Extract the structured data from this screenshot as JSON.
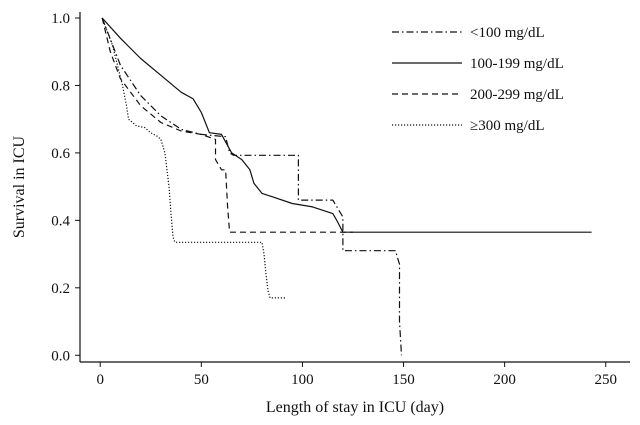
{
  "chart_data": {
    "type": "line",
    "xlabel": "Length of stay in ICU (day)",
    "ylabel": "Survival in ICU",
    "xlim": [
      -10,
      262
    ],
    "ylim": [
      -0.02,
      1.0
    ],
    "xticks": [
      0,
      50,
      100,
      150,
      200,
      250
    ],
    "yticks": [
      0.0,
      0.2,
      0.4,
      0.6,
      0.8,
      1.0
    ],
    "xtick_labels": [
      "0",
      "50",
      "100",
      "150",
      "200",
      "250"
    ],
    "ytick_labels": [
      "0.0",
      "0.2",
      "0.4",
      "0.6",
      "0.8",
      "1.0"
    ],
    "grid": false,
    "legend_position": "top-right",
    "series": [
      {
        "name": "<100 mg/dL",
        "color": "#111111",
        "dash": "dashdot",
        "points": [
          [
            1,
            1.0
          ],
          [
            10,
            0.86
          ],
          [
            20,
            0.77
          ],
          [
            30,
            0.71
          ],
          [
            40,
            0.67
          ],
          [
            50,
            0.655
          ],
          [
            62,
            0.648
          ],
          [
            64,
            0.6
          ],
          [
            66,
            0.593
          ],
          [
            98,
            0.593
          ],
          [
            98,
            0.46
          ],
          [
            115,
            0.46
          ],
          [
            120,
            0.41
          ],
          [
            120,
            0.31
          ],
          [
            146,
            0.31
          ],
          [
            148,
            0.27
          ],
          [
            148,
            0.1
          ],
          [
            149,
            0.0
          ]
        ]
      },
      {
        "name": "100-199 mg/dL",
        "color": "#111111",
        "dash": "solid",
        "points": [
          [
            1,
            1.0
          ],
          [
            10,
            0.94
          ],
          [
            20,
            0.88
          ],
          [
            30,
            0.83
          ],
          [
            40,
            0.78
          ],
          [
            46,
            0.76
          ],
          [
            50,
            0.72
          ],
          [
            54,
            0.66
          ],
          [
            60,
            0.655
          ],
          [
            65,
            0.6
          ],
          [
            70,
            0.58
          ],
          [
            74,
            0.55
          ],
          [
            76,
            0.51
          ],
          [
            80,
            0.48
          ],
          [
            85,
            0.47
          ],
          [
            95,
            0.45
          ],
          [
            105,
            0.44
          ],
          [
            115,
            0.42
          ],
          [
            117,
            0.4
          ],
          [
            120,
            0.365
          ],
          [
            243,
            0.365
          ]
        ]
      },
      {
        "name": "200-299 mg/dL",
        "color": "#111111",
        "dash": "dashed",
        "points": [
          [
            1,
            1.0
          ],
          [
            5,
            0.9
          ],
          [
            10,
            0.82
          ],
          [
            20,
            0.74
          ],
          [
            30,
            0.69
          ],
          [
            40,
            0.665
          ],
          [
            50,
            0.655
          ],
          [
            57,
            0.64
          ],
          [
            57,
            0.58
          ],
          [
            60,
            0.55
          ],
          [
            62,
            0.55
          ],
          [
            63,
            0.44
          ],
          [
            64,
            0.365
          ],
          [
            125,
            0.365
          ]
        ]
      },
      {
        "name": "≥300 mg/dL",
        "color": "#111111",
        "dash": "dotted",
        "points": [
          [
            1,
            1.0
          ],
          [
            6,
            0.92
          ],
          [
            11,
            0.8
          ],
          [
            13,
            0.74
          ],
          [
            14,
            0.7
          ],
          [
            18,
            0.68
          ],
          [
            22,
            0.675
          ],
          [
            25,
            0.66
          ],
          [
            28,
            0.65
          ],
          [
            30,
            0.64
          ],
          [
            32,
            0.6
          ],
          [
            34,
            0.5
          ],
          [
            35,
            0.42
          ],
          [
            36,
            0.35
          ],
          [
            37,
            0.335
          ],
          [
            80,
            0.335
          ],
          [
            81,
            0.3
          ],
          [
            82,
            0.24
          ],
          [
            83,
            0.19
          ],
          [
            84,
            0.17
          ],
          [
            92,
            0.17
          ]
        ]
      }
    ]
  }
}
